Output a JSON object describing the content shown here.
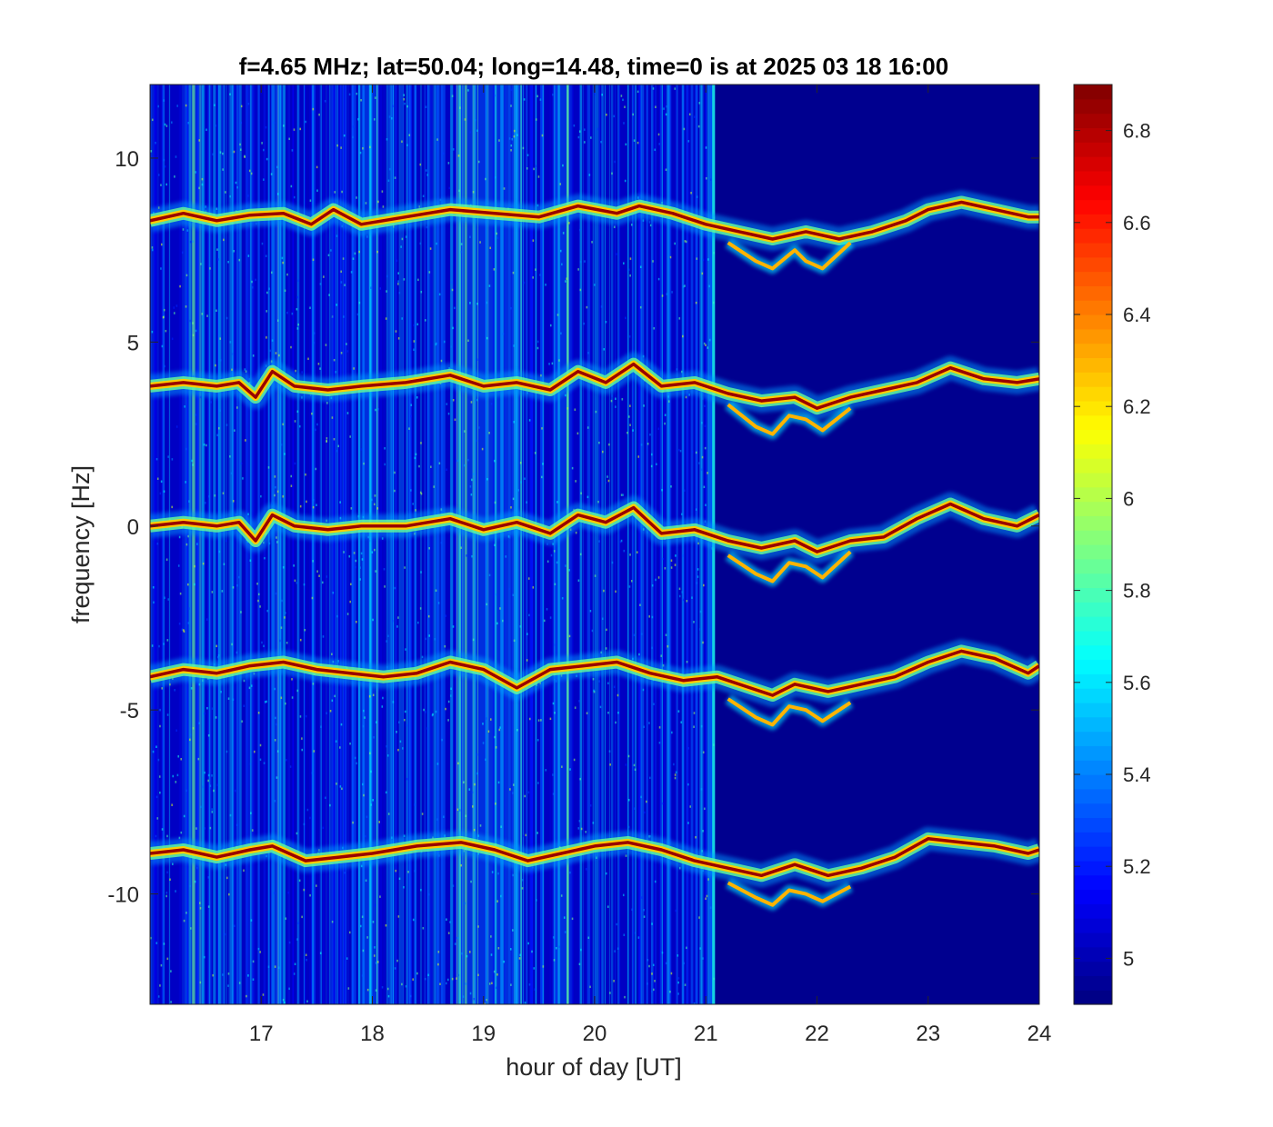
{
  "chart_data": {
    "type": "heatmap",
    "title": "f=4.65 MHz;  lat=50.04; long=14.48, time=0 is at 2025 03 18 16:00",
    "xlabel": "hour of day [UT]",
    "ylabel": "frequency [Hz]",
    "xlim": [
      16,
      24
    ],
    "ylim": [
      -13,
      12
    ],
    "x_ticks": [
      17,
      18,
      19,
      20,
      21,
      22,
      23,
      24
    ],
    "x_tick_labels": [
      "17",
      "18",
      "19",
      "20",
      "21",
      "22",
      "23",
      "24"
    ],
    "y_ticks": [
      10,
      5,
      0,
      -5,
      -10
    ],
    "y_tick_labels": [
      "10",
      "5",
      "0",
      "-5",
      "-10"
    ],
    "colorbar": {
      "colormap": "jet",
      "clim": [
        4.9,
        6.9
      ],
      "ticks": [
        6.8,
        6.6,
        6.4,
        6.2,
        6,
        5.8,
        5.6,
        5.4,
        5.2,
        5
      ],
      "tick_labels": [
        "6.8",
        "6.6",
        "6.4",
        "6.2",
        "6",
        "5.8",
        "5.6",
        "5.4",
        "5.2",
        "5"
      ]
    },
    "background_value": 4.95,
    "noisy_interval_hours": [
      16.0,
      21.07
    ],
    "noise_band_hours": [
      [
        16.3,
        16.45
      ],
      [
        17.1,
        17.2
      ],
      [
        17.9,
        18.05
      ],
      [
        18.75,
        19.35
      ],
      [
        19.65,
        19.8
      ]
    ],
    "traces": [
      {
        "name": "",
        "hours": [
          16.0,
          16.3,
          16.6,
          16.9,
          17.2,
          17.45,
          17.65,
          17.9,
          18.3,
          18.7,
          19.1,
          19.5,
          19.85,
          20.2,
          20.4,
          20.7,
          21.0,
          21.3,
          21.6,
          21.9,
          22.2,
          22.5,
          22.8,
          23.0,
          23.3,
          23.6,
          23.9,
          24.0
        ],
        "freq_hz": [
          8.3,
          8.5,
          8.3,
          8.45,
          8.5,
          8.2,
          8.6,
          8.2,
          8.4,
          8.6,
          8.5,
          8.4,
          8.7,
          8.5,
          8.7,
          8.5,
          8.2,
          8.0,
          7.8,
          8.0,
          7.8,
          8.0,
          8.3,
          8.6,
          8.8,
          8.6,
          8.4,
          8.4
        ],
        "lower_branch": {
          "hours": [
            21.2,
            21.45,
            21.6,
            21.8,
            21.9,
            22.05,
            22.3
          ],
          "freq_hz": [
            7.7,
            7.2,
            7.0,
            7.5,
            7.2,
            7.0,
            7.7
          ]
        }
      },
      {
        "name": "",
        "hours": [
          16.0,
          16.3,
          16.6,
          16.8,
          16.95,
          17.1,
          17.3,
          17.6,
          17.9,
          18.3,
          18.7,
          19.0,
          19.3,
          19.6,
          19.85,
          20.1,
          20.35,
          20.6,
          20.9,
          21.2,
          21.5,
          21.8,
          22.0,
          22.3,
          22.6,
          22.9,
          23.2,
          23.5,
          23.8,
          24.0
        ],
        "freq_hz": [
          3.8,
          3.9,
          3.8,
          3.9,
          3.5,
          4.2,
          3.8,
          3.7,
          3.8,
          3.9,
          4.1,
          3.8,
          3.9,
          3.7,
          4.2,
          3.9,
          4.4,
          3.8,
          3.9,
          3.6,
          3.4,
          3.5,
          3.2,
          3.5,
          3.7,
          3.9,
          4.3,
          4.0,
          3.9,
          4.0
        ],
        "lower_branch": {
          "hours": [
            21.2,
            21.45,
            21.6,
            21.75,
            21.9,
            22.05,
            22.3
          ],
          "freq_hz": [
            3.3,
            2.7,
            2.5,
            3.0,
            2.9,
            2.6,
            3.2
          ]
        }
      },
      {
        "name": "",
        "hours": [
          16.0,
          16.3,
          16.6,
          16.8,
          16.95,
          17.1,
          17.3,
          17.6,
          17.9,
          18.3,
          18.7,
          19.0,
          19.3,
          19.6,
          19.85,
          20.1,
          20.35,
          20.6,
          20.9,
          21.2,
          21.5,
          21.8,
          22.0,
          22.3,
          22.6,
          22.9,
          23.2,
          23.5,
          23.8,
          24.0
        ],
        "freq_hz": [
          0.0,
          0.1,
          0.0,
          0.1,
          -0.4,
          0.3,
          0.0,
          -0.1,
          0.0,
          0.0,
          0.2,
          -0.1,
          0.1,
          -0.2,
          0.3,
          0.1,
          0.5,
          -0.2,
          -0.1,
          -0.4,
          -0.6,
          -0.4,
          -0.7,
          -0.4,
          -0.3,
          0.2,
          0.6,
          0.2,
          0.0,
          0.3
        ],
        "lower_branch": {
          "hours": [
            21.2,
            21.45,
            21.6,
            21.75,
            21.9,
            22.05,
            22.3
          ],
          "freq_hz": [
            -0.8,
            -1.3,
            -1.5,
            -1.0,
            -1.1,
            -1.4,
            -0.7
          ]
        }
      },
      {
        "name": "",
        "hours": [
          16.0,
          16.3,
          16.6,
          16.9,
          17.2,
          17.5,
          17.8,
          18.1,
          18.4,
          18.7,
          19.0,
          19.3,
          19.6,
          19.9,
          20.2,
          20.5,
          20.8,
          21.1,
          21.4,
          21.6,
          21.8,
          22.1,
          22.4,
          22.7,
          23.0,
          23.3,
          23.6,
          23.9,
          24.0
        ],
        "freq_hz": [
          -4.1,
          -3.9,
          -4.0,
          -3.8,
          -3.7,
          -3.9,
          -4.0,
          -4.1,
          -4.0,
          -3.7,
          -3.9,
          -4.4,
          -3.9,
          -3.8,
          -3.7,
          -4.0,
          -4.2,
          -4.1,
          -4.4,
          -4.6,
          -4.3,
          -4.5,
          -4.3,
          -4.1,
          -3.7,
          -3.4,
          -3.6,
          -4.0,
          -3.8
        ],
        "lower_branch": {
          "hours": [
            21.2,
            21.45,
            21.6,
            21.75,
            21.9,
            22.05,
            22.3
          ],
          "freq_hz": [
            -4.7,
            -5.2,
            -5.4,
            -4.9,
            -5.0,
            -5.3,
            -4.8
          ]
        }
      },
      {
        "name": "",
        "hours": [
          16.0,
          16.3,
          16.6,
          16.9,
          17.1,
          17.4,
          17.7,
          18.0,
          18.4,
          18.8,
          19.1,
          19.4,
          19.7,
          20.0,
          20.3,
          20.6,
          20.9,
          21.2,
          21.5,
          21.8,
          22.1,
          22.4,
          22.7,
          23.0,
          23.3,
          23.6,
          23.9,
          24.0
        ],
        "freq_hz": [
          -8.9,
          -8.8,
          -9.0,
          -8.8,
          -8.7,
          -9.1,
          -9.0,
          -8.9,
          -8.7,
          -8.6,
          -8.8,
          -9.1,
          -8.9,
          -8.7,
          -8.6,
          -8.8,
          -9.1,
          -9.3,
          -9.5,
          -9.2,
          -9.5,
          -9.3,
          -9.0,
          -8.5,
          -8.6,
          -8.7,
          -8.9,
          -8.8
        ],
        "lower_branch": {
          "hours": [
            21.2,
            21.45,
            21.6,
            21.75,
            21.9,
            22.05,
            22.3
          ],
          "freq_hz": [
            -9.7,
            -10.1,
            -10.3,
            -9.9,
            -10.0,
            -10.2,
            -9.8
          ]
        }
      }
    ]
  }
}
